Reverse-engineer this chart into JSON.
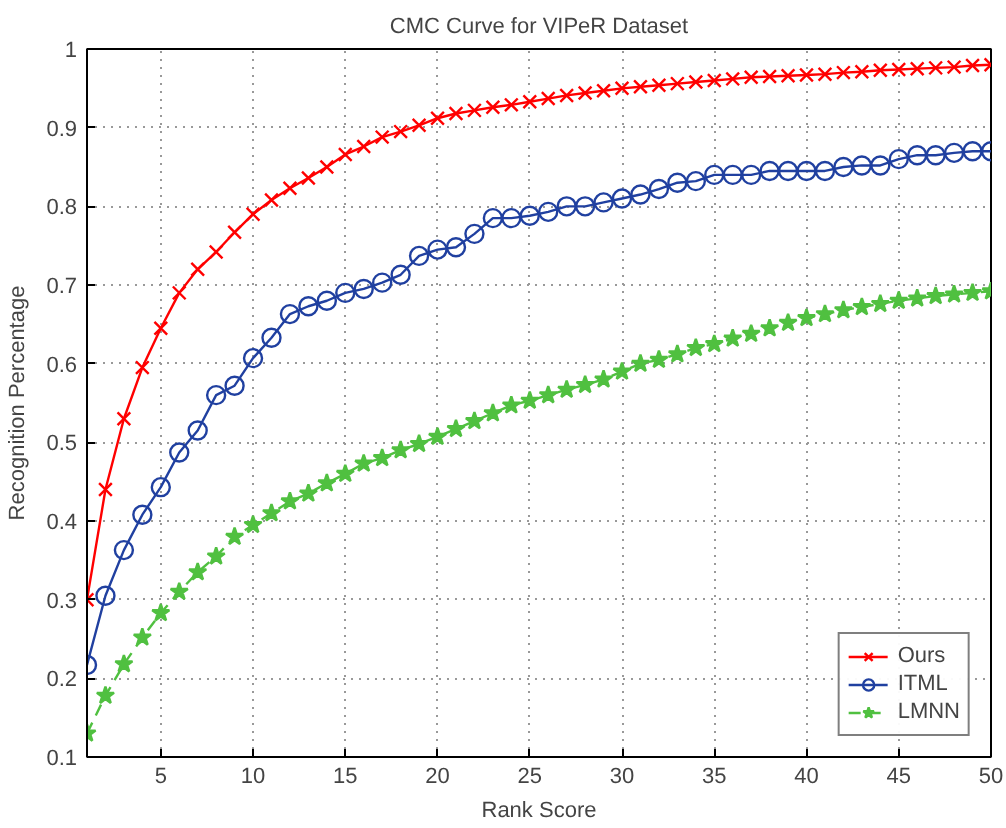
{
  "chart_data": {
    "type": "line",
    "title": "CMC Curve for VIPeR Dataset",
    "xlabel": "Rank Score",
    "ylabel": "Recognition Percentage",
    "x": [
      1,
      2,
      3,
      4,
      5,
      6,
      7,
      8,
      9,
      10,
      11,
      12,
      13,
      14,
      15,
      16,
      17,
      18,
      19,
      20,
      21,
      22,
      23,
      24,
      25,
      26,
      27,
      28,
      29,
      30,
      31,
      32,
      33,
      34,
      35,
      36,
      37,
      38,
      39,
      40,
      41,
      42,
      43,
      44,
      45,
      46,
      47,
      48,
      49,
      50
    ],
    "series": [
      {
        "name": "Ours",
        "color": "#ff0000",
        "marker": "cross",
        "line_style": "solid",
        "values": [
          0.3,
          0.44,
          0.53,
          0.595,
          0.645,
          0.69,
          0.72,
          0.742,
          0.767,
          0.79,
          0.808,
          0.823,
          0.836,
          0.85,
          0.866,
          0.876,
          0.888,
          0.895,
          0.903,
          0.912,
          0.918,
          0.922,
          0.926,
          0.929,
          0.933,
          0.937,
          0.941,
          0.944,
          0.947,
          0.95,
          0.952,
          0.954,
          0.956,
          0.958,
          0.96,
          0.962,
          0.964,
          0.965,
          0.966,
          0.967,
          0.968,
          0.97,
          0.971,
          0.973,
          0.974,
          0.975,
          0.976,
          0.977,
          0.979,
          0.98
        ]
      },
      {
        "name": "ITML",
        "color": "#2040a0",
        "marker": "circle",
        "line_style": "solid",
        "values": [
          0.217,
          0.305,
          0.363,
          0.408,
          0.443,
          0.487,
          0.515,
          0.56,
          0.572,
          0.607,
          0.633,
          0.663,
          0.673,
          0.68,
          0.69,
          0.695,
          0.703,
          0.713,
          0.737,
          0.745,
          0.748,
          0.765,
          0.785,
          0.785,
          0.788,
          0.793,
          0.8,
          0.8,
          0.805,
          0.81,
          0.815,
          0.822,
          0.83,
          0.832,
          0.84,
          0.84,
          0.84,
          0.845,
          0.845,
          0.845,
          0.845,
          0.85,
          0.852,
          0.852,
          0.86,
          0.865,
          0.865,
          0.868,
          0.87,
          0.87
        ]
      },
      {
        "name": "LMNN",
        "color": "#50c040",
        "marker": "star",
        "line_style": "dashed",
        "values": [
          0.13,
          0.178,
          0.218,
          0.252,
          0.283,
          0.31,
          0.335,
          0.355,
          0.38,
          0.395,
          0.41,
          0.425,
          0.435,
          0.448,
          0.46,
          0.473,
          0.48,
          0.49,
          0.498,
          0.507,
          0.517,
          0.527,
          0.537,
          0.547,
          0.553,
          0.56,
          0.567,
          0.573,
          0.58,
          0.59,
          0.6,
          0.605,
          0.612,
          0.62,
          0.625,
          0.632,
          0.638,
          0.645,
          0.652,
          0.658,
          0.663,
          0.668,
          0.672,
          0.676,
          0.68,
          0.683,
          0.686,
          0.688,
          0.69,
          0.692
        ]
      }
    ],
    "xlim": [
      1,
      50
    ],
    "ylim": [
      0.1,
      1
    ],
    "xticks": [
      5,
      10,
      15,
      20,
      25,
      30,
      35,
      40,
      45,
      50
    ],
    "yticks": [
      0.1,
      0.2,
      0.3,
      0.4,
      0.5,
      0.6,
      0.7,
      0.8,
      0.9,
      1
    ],
    "grid": true,
    "legend": "bottom right"
  }
}
